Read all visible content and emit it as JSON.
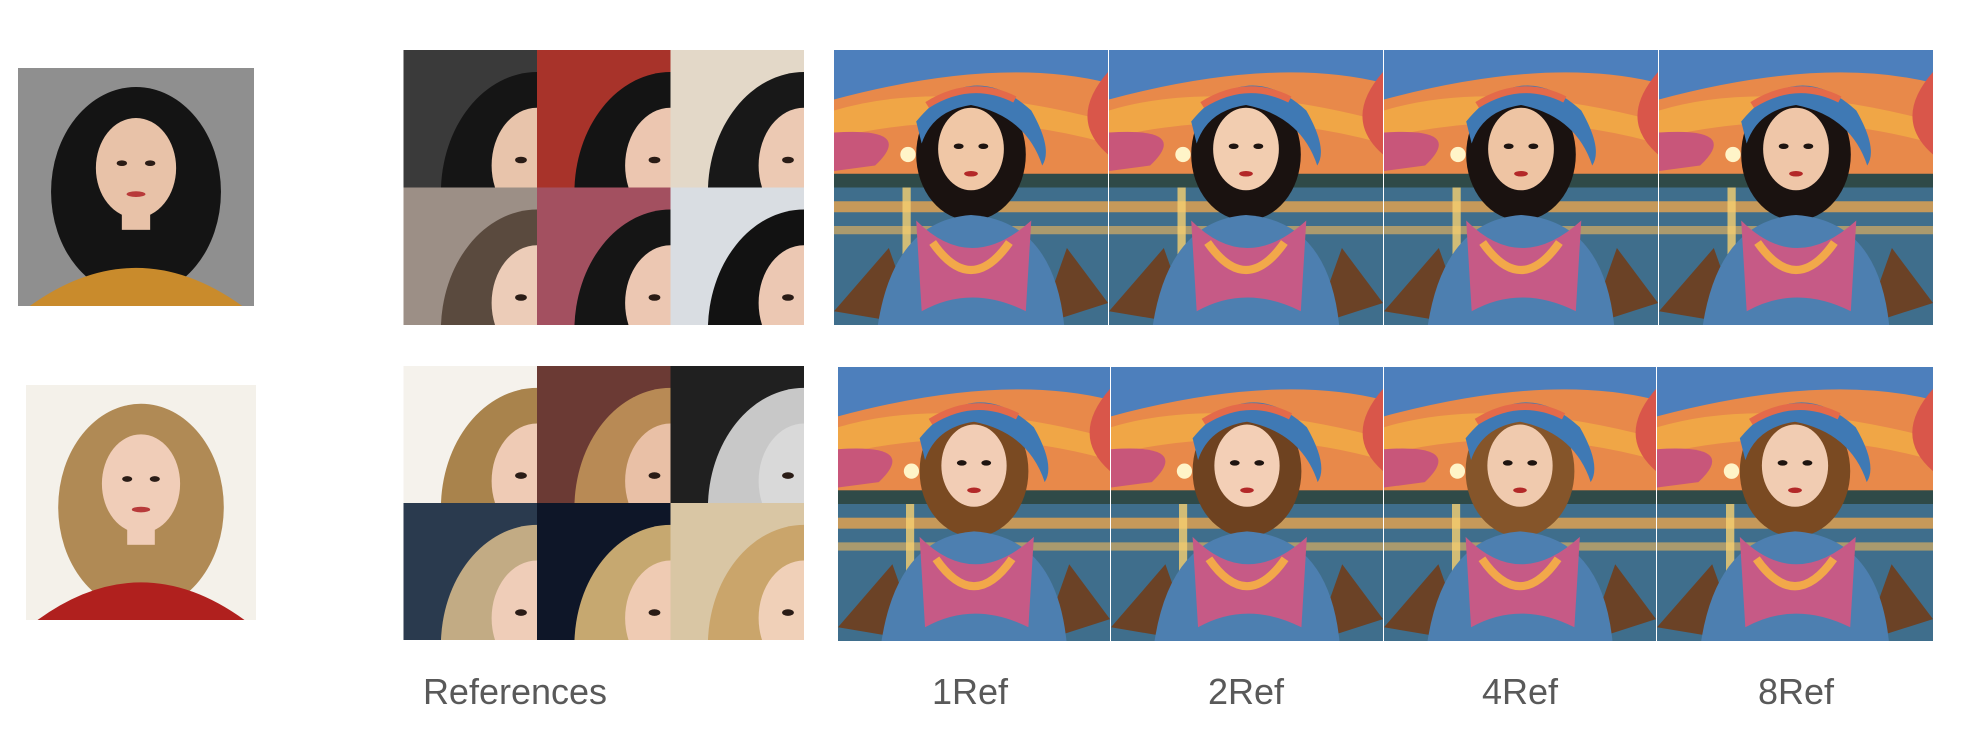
{
  "captions": {
    "references": "References",
    "ref1": "1Ref",
    "ref2": "2Ref",
    "ref4": "4Ref",
    "ref8": "8Ref"
  },
  "rows": [
    {
      "name": "row-1",
      "input_photo": {
        "bg": "#8f8f8f",
        "hair": "#141414",
        "skin": "#e8c2a8",
        "clothes": "#c98b2c"
      },
      "references": [
        {
          "bg": "#3a3a3a",
          "hair": "#151515",
          "skin": "#e8c4ab",
          "clothes": "#c4882c"
        },
        {
          "bg": "#a8332a",
          "hair": "#141414",
          "skin": "#ecc6b0",
          "clothes": "#f0f0f0"
        },
        {
          "bg": "#e3d8c8",
          "hair": "#181818",
          "skin": "#ecc9b3",
          "clothes": "#2b2b2b"
        },
        {
          "bg": "#e6c7d3",
          "hair": "#3a2a20",
          "skin": "#ebc6ae",
          "clothes": "#d8b0a0"
        },
        {
          "bg": "#9c8f86",
          "hair": "#5a4a3e",
          "skin": "#ecccb8",
          "clothes": "#c9c0b8"
        },
        {
          "bg": "#a35060",
          "hair": "#151515",
          "skin": "#ecc7b2",
          "clothes": "#f3f3f3"
        },
        {
          "bg": "#d9dde2",
          "hair": "#121212",
          "skin": "#ecc8b3",
          "clothes": "#6f6f78"
        },
        {
          "bg": "#1c2438",
          "hair": "#101010",
          "skin": "#ebc6b0",
          "clothes": "#141414"
        }
      ],
      "generated": [
        {
          "skin": "#f0c7a6",
          "hair": "#1a1210"
        },
        {
          "skin": "#f2cdb0",
          "hair": "#1a1210"
        },
        {
          "skin": "#eec4a3",
          "hair": "#1a1210"
        },
        {
          "skin": "#efc6a8",
          "hair": "#1a1210"
        }
      ]
    },
    {
      "name": "row-2",
      "input_photo": {
        "bg": "#f4f1ea",
        "hair": "#b08a55",
        "skin": "#f0cdb8",
        "clothes": "#b0201e"
      },
      "references": [
        {
          "bg": "#f5f2ec",
          "hair": "#a9834c",
          "skin": "#efcbb5",
          "clothes": "#b8231e"
        },
        {
          "bg": "#6b3a34",
          "hair": "#b88a55",
          "skin": "#e9c0a6",
          "clothes": "#c9a07a"
        },
        {
          "bg": "#202020",
          "hair": "#c8c8c8",
          "skin": "#d9d9d9",
          "clothes": "#101010"
        },
        {
          "bg": "#3a2e2a",
          "hair": "#a57a45",
          "skin": "#efc8b0",
          "clothes": "#1a1a1a"
        },
        {
          "bg": "#2a3a4e",
          "hair": "#c2ab84",
          "skin": "#efcdb8",
          "clothes": "#141414"
        },
        {
          "bg": "#0e1628",
          "hair": "#c6a870",
          "skin": "#efcbb3",
          "clothes": "#f1f1f1"
        },
        {
          "bg": "#d9c6a4",
          "hair": "#caa56b",
          "skin": "#f0d0b8",
          "clothes": "#7fa3a0"
        },
        {
          "bg": "#ece6df",
          "hair": "#b8946a",
          "skin": "#eecbb5",
          "clothes": "#1e1e1e"
        }
      ],
      "generated": [
        {
          "skin": "#f2cdb5",
          "hair": "#7a4a22"
        },
        {
          "skin": "#f3cfb6",
          "hair": "#6e4220"
        },
        {
          "skin": "#f0caae",
          "hair": "#85552a"
        },
        {
          "skin": "#f1ccb2",
          "hair": "#7a4a22"
        }
      ]
    }
  ]
}
